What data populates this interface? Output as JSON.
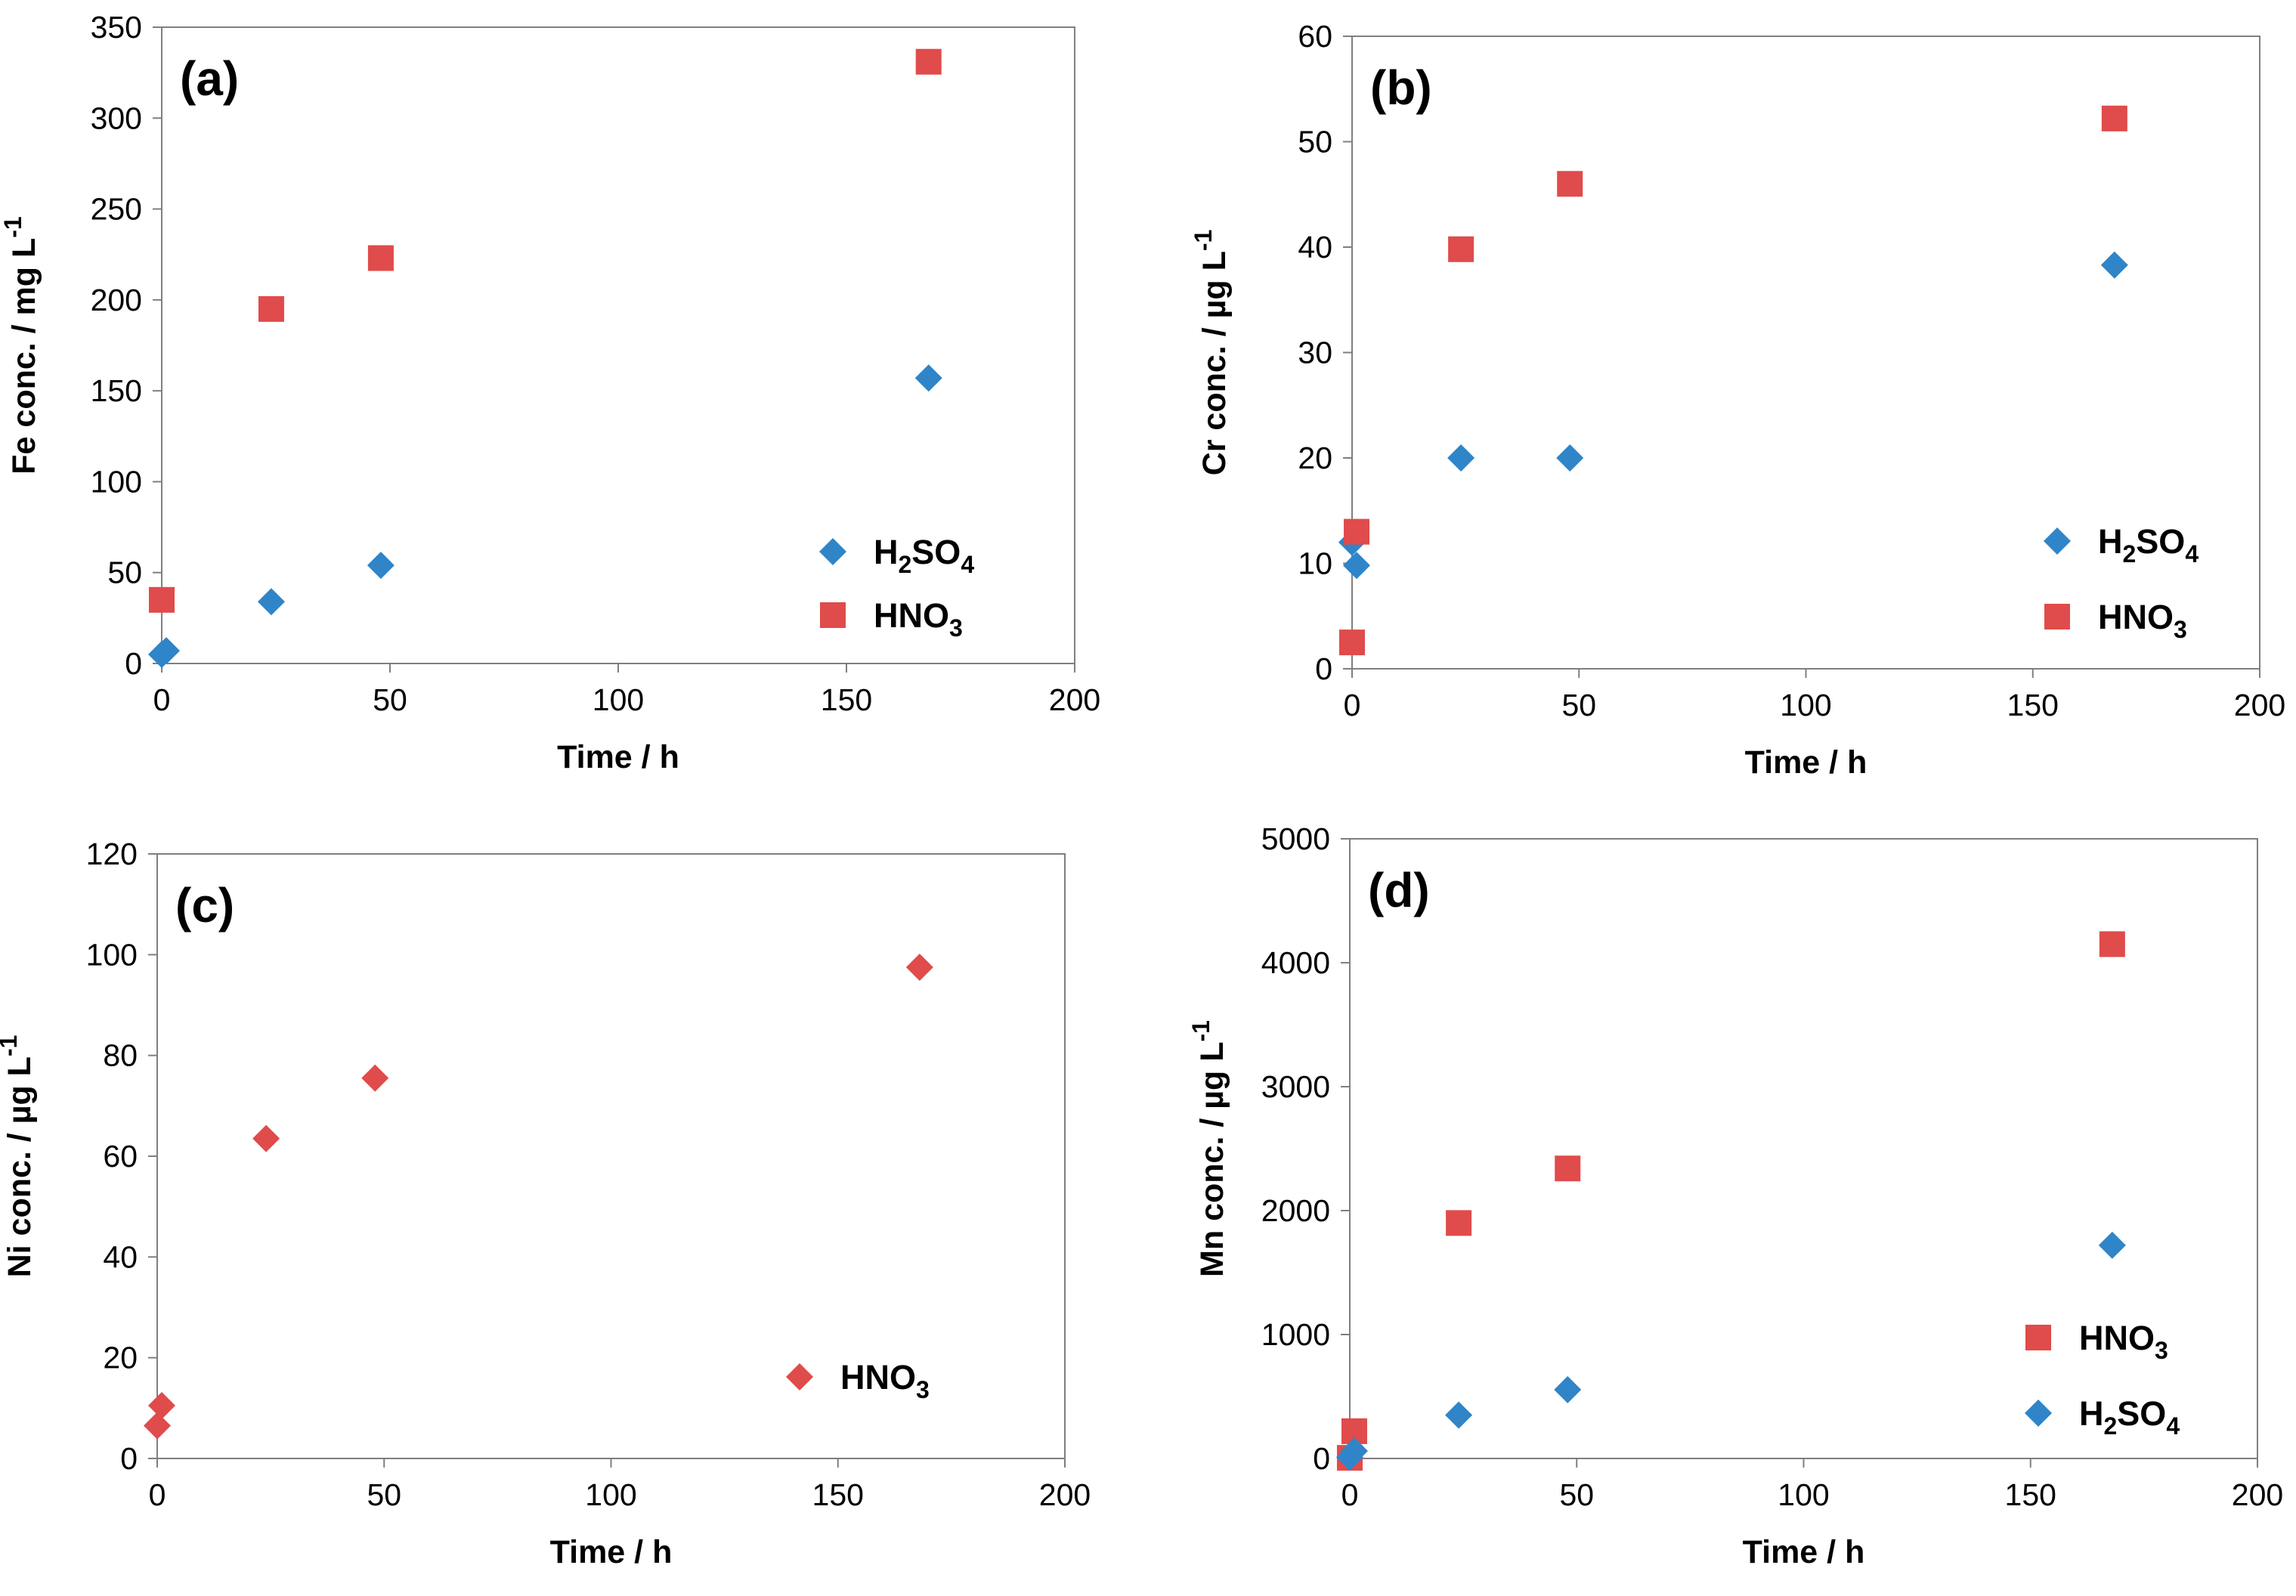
{
  "chart_data": [
    {
      "type": "scatter",
      "panel": "(a)",
      "xlabel": "Time / h",
      "ylabel": {
        "main": "Fe conc. / mg L",
        "sup": "-1"
      },
      "xlim": [
        0,
        200
      ],
      "ylim": [
        0,
        350
      ],
      "xticks": [
        "0",
        "50",
        "100",
        "150",
        "200"
      ],
      "yticks": [
        "0",
        "50",
        "100",
        "150",
        "200",
        "250",
        "300",
        "350"
      ],
      "legend_position": "bottom-right",
      "series": [
        {
          "name": "H2SO4",
          "label": {
            "parts": [
              "H",
              "2",
              "SO",
              "4"
            ]
          },
          "marker": "diamond",
          "color": "#2F85C8",
          "x": [
            0,
            1,
            24,
            48,
            168
          ],
          "y": [
            5,
            7,
            34,
            54,
            157
          ]
        },
        {
          "name": "HNO3",
          "label": {
            "parts": [
              "HNO",
              "3"
            ]
          },
          "marker": "square",
          "color": "#E04B4B",
          "x": [
            0,
            24,
            48,
            168
          ],
          "y": [
            35,
            195,
            223,
            331
          ]
        }
      ]
    },
    {
      "type": "scatter",
      "panel": "(b)",
      "xlabel": "Time / h",
      "ylabel": {
        "main": "Cr conc. / µg L",
        "sup": "-1"
      },
      "xlim": [
        0,
        200
      ],
      "ylim": [
        0,
        60
      ],
      "xticks": [
        "0",
        "50",
        "100",
        "150",
        "200"
      ],
      "yticks": [
        "0",
        "10",
        "20",
        "30",
        "40",
        "50",
        "60"
      ],
      "legend_position": "bottom-right",
      "series": [
        {
          "name": "H2SO4",
          "label": {
            "parts": [
              "H",
              "2",
              "SO",
              "4"
            ]
          },
          "marker": "diamond",
          "color": "#2F85C8",
          "x": [
            0,
            1,
            24,
            48,
            168
          ],
          "y": [
            12,
            9.8,
            20,
            20,
            38.3
          ]
        },
        {
          "name": "HNO3",
          "label": {
            "parts": [
              "HNO",
              "3"
            ]
          },
          "marker": "square",
          "color": "#E04B4B",
          "x": [
            0,
            1,
            24,
            48,
            168
          ],
          "y": [
            2.5,
            13,
            39.8,
            46,
            52.2
          ]
        }
      ]
    },
    {
      "type": "scatter",
      "panel": "(c)",
      "xlabel": "Time / h",
      "ylabel": {
        "main": "Ni conc. / µg L",
        "sup": "-1"
      },
      "xlim": [
        0,
        200
      ],
      "ylim": [
        0,
        120
      ],
      "xticks": [
        "0",
        "50",
        "100",
        "150",
        "200"
      ],
      "yticks": [
        "0",
        "20",
        "40",
        "60",
        "80",
        "100",
        "120"
      ],
      "legend_position": "bottom-right",
      "series": [
        {
          "name": "HNO3",
          "label": {
            "parts": [
              "HNO",
              "3"
            ]
          },
          "marker": "diamond",
          "color": "#E04B4B",
          "x": [
            0,
            1,
            24,
            48,
            168
          ],
          "y": [
            6.5,
            10.5,
            63.5,
            75.5,
            97.5
          ]
        }
      ]
    },
    {
      "type": "scatter",
      "panel": "(d)",
      "xlabel": "Time / h",
      "ylabel": {
        "main": "Mn conc. / µg L",
        "sup": "-1"
      },
      "xlim": [
        0,
        200
      ],
      "ylim": [
        0,
        5000
      ],
      "xticks": [
        "0",
        "50",
        "100",
        "150",
        "200"
      ],
      "yticks": [
        "0",
        "1000",
        "2000",
        "3000",
        "4000",
        "5000"
      ],
      "legend_position": "bottom-right",
      "series": [
        {
          "name": "HNO3",
          "label": {
            "parts": [
              "HNO",
              "3"
            ]
          },
          "marker": "square",
          "color": "#E04B4B",
          "x": [
            0,
            1,
            24,
            48,
            168
          ],
          "y": [
            5,
            220,
            1900,
            2340,
            4150
          ]
        },
        {
          "name": "H2SO4",
          "label": {
            "parts": [
              "H",
              "2",
              "SO",
              "4"
            ]
          },
          "marker": "diamond",
          "color": "#2F85C8",
          "x": [
            0,
            1,
            24,
            48,
            168
          ],
          "y": [
            10,
            60,
            350,
            555,
            1720
          ]
        }
      ]
    }
  ]
}
